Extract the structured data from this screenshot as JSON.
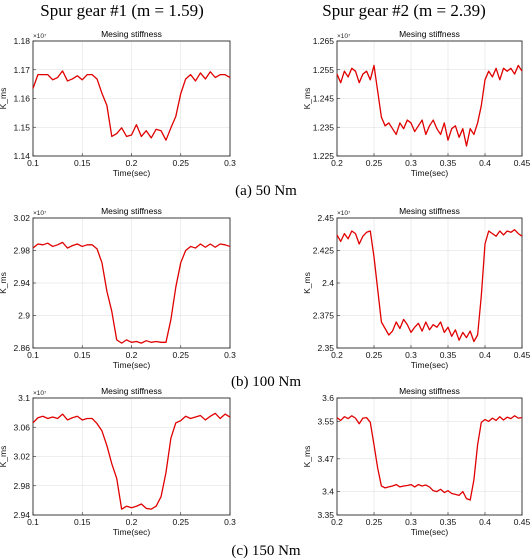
{
  "headers": {
    "col1": "Spur gear #1 (m = 1.59)",
    "col2": "Spur gear #2 (m = 2.39)"
  },
  "captions": [
    "(a) 50 Nm",
    "(b) 100 Nm",
    "(c) 150 Nm"
  ],
  "line_color": "#e00000",
  "chart_data": [
    {
      "type": "line",
      "title": "Mesing stiffness",
      "xlabel": "Time(sec)",
      "ylabel": "K_ms",
      "y_multiplier": "×10⁷",
      "xlim": [
        0.1,
        0.3
      ],
      "ylim": [
        1.14,
        1.18
      ],
      "xticks": [
        "0.1",
        "0.15",
        "0.2",
        "0.25",
        "0.3"
      ],
      "yticks": [
        "1.14",
        "1.15",
        "1.16",
        "1.17",
        "1.18"
      ],
      "grid": true,
      "series": [
        {
          "x": [
            0.1,
            0.105,
            0.11,
            0.115,
            0.12,
            0.125,
            0.13,
            0.135,
            0.14,
            0.145,
            0.15,
            0.155,
            0.16,
            0.165,
            0.17,
            0.175,
            0.18,
            0.185,
            0.19,
            0.195,
            0.2,
            0.205,
            0.21,
            0.215,
            0.22,
            0.225,
            0.23,
            0.235,
            0.24,
            0.245,
            0.25,
            0.255,
            0.26,
            0.265,
            0.27,
            0.275,
            0.28,
            0.285,
            0.29,
            0.295,
            0.3
          ],
          "y": [
            1.1635,
            1.1683,
            1.1683,
            1.1683,
            1.1665,
            1.1673,
            1.1696,
            1.1661,
            1.1668,
            1.1679,
            1.1665,
            1.1683,
            1.1683,
            1.1668,
            1.1618,
            1.1576,
            1.1468,
            1.1478,
            1.1498,
            1.1468,
            1.1473,
            1.1509,
            1.1468,
            1.1488,
            1.1463,
            1.1493,
            1.1488,
            1.1455,
            1.1498,
            1.1538,
            1.1617,
            1.1668,
            1.1683,
            1.1661,
            1.1689,
            1.1668,
            1.1693,
            1.1673,
            1.1683,
            1.1683,
            1.1673
          ]
        }
      ]
    },
    {
      "type": "line",
      "title": "Mesing stiffness",
      "xlabel": "Time(sec)",
      "ylabel": "K_ms",
      "y_multiplier": "×10⁷",
      "xlim": [
        0.2,
        0.45
      ],
      "ylim": [
        1.225,
        1.265
      ],
      "xticks": [
        "0.2",
        "0.25",
        "0.3",
        "0.35",
        "0.4",
        "0.45"
      ],
      "yticks": [
        "1.225",
        "1.235",
        "1.245",
        "1.255",
        "1.265"
      ],
      "grid": true,
      "series": [
        {
          "x": [
            0.2,
            0.205,
            0.21,
            0.215,
            0.22,
            0.225,
            0.23,
            0.235,
            0.24,
            0.245,
            0.25,
            0.255,
            0.26,
            0.265,
            0.27,
            0.275,
            0.28,
            0.285,
            0.29,
            0.295,
            0.3,
            0.305,
            0.31,
            0.315,
            0.32,
            0.325,
            0.33,
            0.335,
            0.34,
            0.345,
            0.35,
            0.355,
            0.36,
            0.365,
            0.37,
            0.375,
            0.38,
            0.385,
            0.39,
            0.395,
            0.4,
            0.405,
            0.41,
            0.415,
            0.42,
            0.425,
            0.43,
            0.435,
            0.44,
            0.445,
            0.45
          ],
          "y": [
            1.2535,
            1.2505,
            1.2545,
            1.2525,
            1.2555,
            1.2545,
            1.2505,
            1.2535,
            1.2545,
            1.2515,
            1.2565,
            1.2475,
            1.2385,
            1.2355,
            1.2365,
            1.2345,
            1.2325,
            1.2365,
            1.2345,
            1.2375,
            1.2365,
            1.2335,
            1.2355,
            1.2375,
            1.2325,
            1.2355,
            1.2375,
            1.2345,
            1.2325,
            1.2365,
            1.2305,
            1.2345,
            1.2355,
            1.2315,
            1.2345,
            1.2285,
            1.2345,
            1.2325,
            1.2365,
            1.2425,
            1.2515,
            1.2545,
            1.2525,
            1.2555,
            1.2515,
            1.2555,
            1.2545,
            1.2555,
            1.2535,
            1.2565,
            1.2545
          ]
        }
      ]
    },
    {
      "type": "line",
      "title": "Mesing stiffness",
      "xlabel": "Time(sec)",
      "ylabel": "K_ms",
      "y_multiplier": "×10⁷",
      "xlim": [
        0.1,
        0.3
      ],
      "ylim": [
        2.86,
        3.02
      ],
      "xticks": [
        "0.1",
        "0.15",
        "0.2",
        "0.25",
        "0.3"
      ],
      "yticks": [
        "2.86",
        "2.9",
        "2.94",
        "2.98",
        "3.02"
      ],
      "grid": true,
      "series": [
        {
          "x": [
            0.1,
            0.105,
            0.11,
            0.115,
            0.12,
            0.125,
            0.13,
            0.135,
            0.14,
            0.145,
            0.15,
            0.155,
            0.16,
            0.165,
            0.17,
            0.175,
            0.18,
            0.185,
            0.19,
            0.195,
            0.2,
            0.205,
            0.21,
            0.215,
            0.22,
            0.225,
            0.23,
            0.235,
            0.24,
            0.245,
            0.25,
            0.255,
            0.26,
            0.265,
            0.27,
            0.275,
            0.28,
            0.285,
            0.29,
            0.295,
            0.3
          ],
          "y": [
            2.983,
            2.988,
            2.987,
            2.989,
            2.985,
            2.987,
            2.99,
            2.983,
            2.986,
            2.988,
            2.985,
            2.987,
            2.987,
            2.982,
            2.965,
            2.93,
            2.905,
            2.87,
            2.866,
            2.87,
            2.867,
            2.868,
            2.866,
            2.869,
            2.867,
            2.868,
            2.867,
            2.867,
            2.895,
            2.935,
            2.965,
            2.98,
            2.985,
            2.983,
            2.988,
            2.984,
            2.988,
            2.984,
            2.988,
            2.987,
            2.985
          ]
        }
      ]
    },
    {
      "type": "line",
      "title": "Mesing stiffness",
      "xlabel": "Time(sec)",
      "ylabel": "K_ms",
      "y_multiplier": "×10⁷",
      "xlim": [
        0.2,
        0.45
      ],
      "ylim": [
        2.35,
        2.45
      ],
      "xticks": [
        "0.2",
        "0.25",
        "0.3",
        "0.35",
        "0.4",
        "0.45"
      ],
      "yticks": [
        "2.35",
        "2.375",
        "2.4",
        "2.425",
        "2.45"
      ],
      "grid": true,
      "series": [
        {
          "x": [
            0.2,
            0.205,
            0.21,
            0.215,
            0.22,
            0.225,
            0.23,
            0.235,
            0.24,
            0.245,
            0.25,
            0.255,
            0.26,
            0.265,
            0.27,
            0.275,
            0.28,
            0.285,
            0.29,
            0.295,
            0.3,
            0.305,
            0.31,
            0.315,
            0.32,
            0.325,
            0.33,
            0.335,
            0.34,
            0.345,
            0.35,
            0.355,
            0.36,
            0.365,
            0.37,
            0.375,
            0.38,
            0.385,
            0.39,
            0.395,
            0.4,
            0.405,
            0.41,
            0.415,
            0.42,
            0.425,
            0.43,
            0.435,
            0.44,
            0.445,
            0.45
          ],
          "y": [
            2.437,
            2.432,
            2.438,
            2.434,
            2.44,
            2.438,
            2.43,
            2.436,
            2.439,
            2.44,
            2.42,
            2.395,
            2.37,
            2.365,
            2.36,
            2.363,
            2.37,
            2.365,
            2.372,
            2.368,
            2.362,
            2.366,
            2.369,
            2.363,
            2.37,
            2.364,
            2.368,
            2.366,
            2.37,
            2.362,
            2.366,
            2.359,
            2.364,
            2.356,
            2.362,
            2.358,
            2.363,
            2.355,
            2.36,
            2.39,
            2.43,
            2.44,
            2.438,
            2.436,
            2.44,
            2.437,
            2.44,
            2.439,
            2.441,
            2.438,
            2.436
          ]
        }
      ]
    },
    {
      "type": "line",
      "title": "Mesing stiffness",
      "xlabel": "Time(sec)",
      "ylabel": "K_ms",
      "y_multiplier": "×10⁷",
      "xlim": [
        0.1,
        0.3
      ],
      "ylim": [
        2.94,
        3.1
      ],
      "xticks": [
        "0.1",
        "0.15",
        "0.2",
        "0.25",
        "0.3"
      ],
      "yticks": [
        "2.94",
        "2.98",
        "3.02",
        "3.06",
        "3.1"
      ],
      "grid": true,
      "series": [
        {
          "x": [
            0.1,
            0.105,
            0.11,
            0.115,
            0.12,
            0.125,
            0.13,
            0.135,
            0.14,
            0.145,
            0.15,
            0.155,
            0.16,
            0.165,
            0.17,
            0.175,
            0.18,
            0.185,
            0.19,
            0.195,
            0.2,
            0.205,
            0.21,
            0.215,
            0.22,
            0.225,
            0.23,
            0.235,
            0.24,
            0.245,
            0.25,
            0.255,
            0.26,
            0.265,
            0.27,
            0.275,
            0.28,
            0.285,
            0.29,
            0.295,
            0.3
          ],
          "y": [
            3.066,
            3.073,
            3.075,
            3.072,
            3.074,
            3.072,
            3.078,
            3.07,
            3.073,
            3.075,
            3.07,
            3.072,
            3.072,
            3.065,
            3.055,
            3.035,
            3.01,
            2.99,
            2.948,
            2.952,
            2.95,
            2.952,
            2.955,
            2.949,
            2.948,
            2.952,
            2.965,
            2.998,
            3.045,
            3.066,
            3.069,
            3.075,
            3.072,
            3.074,
            3.076,
            3.07,
            3.075,
            3.079,
            3.072,
            3.078,
            3.074
          ]
        }
      ]
    },
    {
      "type": "line",
      "title": "Mesing stiffness",
      "xlabel": "Time(sec)",
      "ylabel": "K_ms",
      "y_multiplier": "",
      "xlim": [
        0.2,
        0.45
      ],
      "ylim": [
        3.35,
        3.6
      ],
      "xticks": [
        "0.2",
        "0.25",
        "0.3",
        "0.35",
        "0.4",
        "0.45"
      ],
      "yticks": [
        "3.35",
        "3.4",
        "3.47",
        "3.55",
        "3.6"
      ],
      "grid": true,
      "series": [
        {
          "x": [
            0.2,
            0.205,
            0.21,
            0.215,
            0.22,
            0.225,
            0.23,
            0.235,
            0.24,
            0.245,
            0.25,
            0.255,
            0.26,
            0.265,
            0.27,
            0.275,
            0.28,
            0.285,
            0.29,
            0.295,
            0.3,
            0.305,
            0.31,
            0.315,
            0.32,
            0.325,
            0.33,
            0.335,
            0.34,
            0.345,
            0.35,
            0.355,
            0.36,
            0.365,
            0.37,
            0.375,
            0.38,
            0.385,
            0.39,
            0.395,
            0.4,
            0.405,
            0.41,
            0.415,
            0.42,
            0.425,
            0.43,
            0.435,
            0.44,
            0.445,
            0.45
          ],
          "y": [
            3.558,
            3.552,
            3.56,
            3.556,
            3.562,
            3.557,
            3.545,
            3.557,
            3.558,
            3.548,
            3.5,
            3.45,
            3.412,
            3.408,
            3.41,
            3.412,
            3.415,
            3.41,
            3.412,
            3.413,
            3.415,
            3.41,
            3.415,
            3.412,
            3.414,
            3.41,
            3.402,
            3.4,
            3.405,
            3.398,
            3.402,
            3.396,
            3.394,
            3.392,
            3.4,
            3.385,
            3.382,
            3.425,
            3.5,
            3.548,
            3.554,
            3.55,
            3.557,
            3.552,
            3.56,
            3.553,
            3.559,
            3.556,
            3.562,
            3.557,
            3.558
          ]
        }
      ]
    }
  ]
}
